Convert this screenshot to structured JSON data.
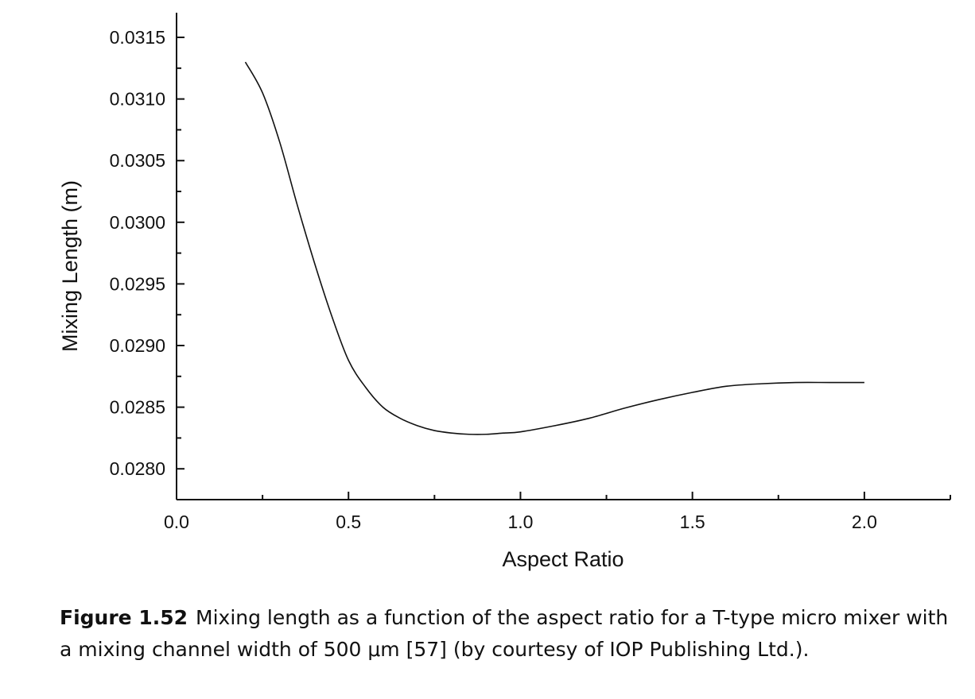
{
  "chart_data": {
    "type": "line",
    "title": "",
    "xlabel": "Aspect Ratio",
    "ylabel": "Mixing Length (m)",
    "xlim": [
      0.0,
      2.25
    ],
    "ylim": [
      0.02775,
      0.0317
    ],
    "x_ticks": [
      "0.0",
      "0.5",
      "1.0",
      "1.5",
      "2.0"
    ],
    "y_ticks": [
      "0.0280",
      "0.0285",
      "0.0290",
      "0.0295",
      "0.0300",
      "0.0305",
      "0.0310",
      "0.0315"
    ],
    "grid": false,
    "series": [
      {
        "x": [
          0.2,
          0.25,
          0.3,
          0.35,
          0.4,
          0.45,
          0.5,
          0.55,
          0.6,
          0.65,
          0.7,
          0.75,
          0.8,
          0.85,
          0.9,
          0.95,
          1.0,
          1.1,
          1.2,
          1.3,
          1.4,
          1.5,
          1.6,
          1.7,
          1.8,
          1.9,
          2.0
        ],
        "y": [
          0.0313,
          0.03105,
          0.03065,
          0.03015,
          0.02968,
          0.02925,
          0.02888,
          0.02866,
          0.0285,
          0.02841,
          0.02835,
          0.02831,
          0.02829,
          0.02828,
          0.02828,
          0.02829,
          0.0283,
          0.02835,
          0.02841,
          0.02849,
          0.02856,
          0.02862,
          0.02867,
          0.02869,
          0.0287,
          0.0287,
          0.0287
        ]
      }
    ]
  },
  "caption": {
    "label": "Figure 1.52",
    "text": "Mixing length as a function of the aspect ratio for a T-type micro mixer with a mixing channel width of 500 μm [57] (by courtesy of IOP Publishing Ltd.)."
  }
}
